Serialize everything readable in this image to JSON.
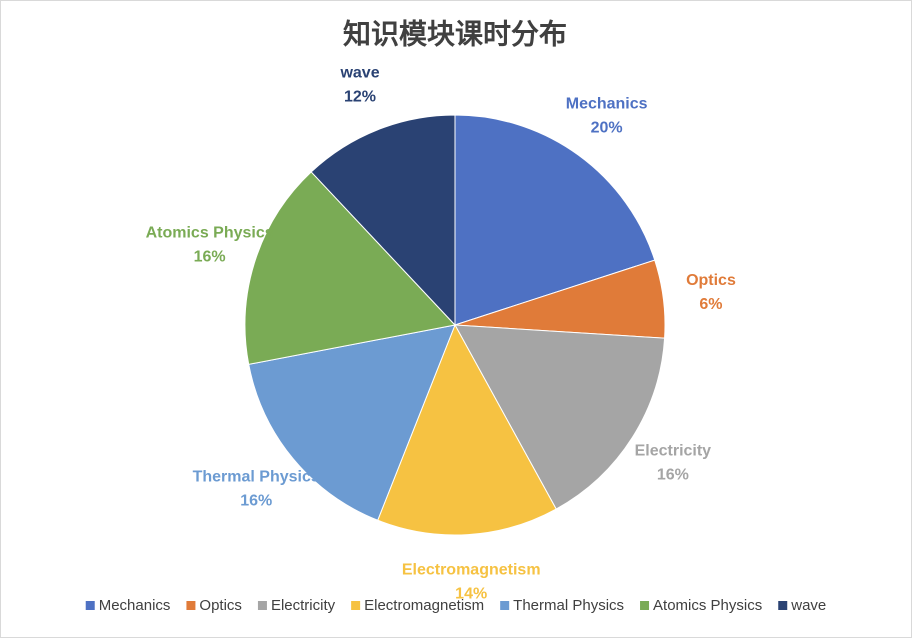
{
  "chart_data": {
    "type": "pie",
    "title": "知识模块课时分布",
    "categories": [
      "Mechanics",
      "Optics",
      "Electricity",
      "Electromagnetism",
      "Thermal Physics",
      "Atomics Physics",
      "wave"
    ],
    "values": [
      20,
      6,
      16,
      14,
      16,
      16,
      12
    ],
    "value_labels": [
      "20%",
      "6%",
      "16%",
      "14%",
      "16%",
      "16%",
      "12%"
    ],
    "colors": [
      "#4e71c3",
      "#e07b39",
      "#a5a5a5",
      "#f6c242",
      "#6c9bd2",
      "#7aab55",
      "#2a4273"
    ],
    "legend": "bottom"
  }
}
